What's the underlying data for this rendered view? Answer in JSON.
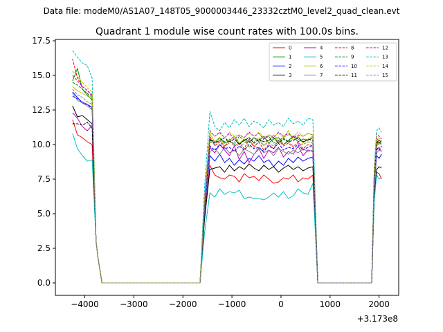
{
  "header": {
    "suptitle": "Data file: modeM0/AS1A07_148T05_9000003446_23332cztM0_level2_quad_clean.evt"
  },
  "chart_data": {
    "type": "line",
    "title": "Quadrant 1 module wise count rates with 100.0s bins.",
    "xlabel": "",
    "ylabel": "",
    "x_offset_label": "+3.173e8",
    "xlim": [
      -4600,
      2400
    ],
    "ylim": [
      -0.9,
      17.6
    ],
    "x_ticks": [
      -4000,
      -3000,
      -2000,
      -1000,
      0,
      1000,
      2000
    ],
    "x_tick_labels": [
      "−4000",
      "−3000",
      "−2000",
      "−1000",
      "0",
      "1000",
      "2000"
    ],
    "y_ticks": [
      0.0,
      2.5,
      5.0,
      7.5,
      10.0,
      12.5,
      15.0,
      17.5
    ],
    "y_tick_labels": [
      "0.0",
      "2.5",
      "5.0",
      "7.5",
      "10.0",
      "12.5",
      "15.0",
      "17.5"
    ],
    "legend": {
      "location": "top-right",
      "columns": 4
    },
    "segments": [
      {
        "x_start": -4250,
        "x_end": -3650,
        "pattern": "start"
      },
      {
        "x_start": -1650,
        "x_end": 750,
        "pattern": "middle"
      },
      {
        "x_start": 1850,
        "x_end": 2050,
        "pattern": "end"
      }
    ],
    "series": [
      {
        "name": "0",
        "color": "#ff0000",
        "style": "solid",
        "seg1": [
          11.8,
          10.7,
          10.5,
          10.2,
          10.0
        ],
        "mid": [
          8.5,
          7.8,
          7.6,
          7.5,
          7.8,
          7.7,
          7.3,
          7.9,
          7.6,
          7.7,
          7.4,
          7.8,
          7.5,
          7.2,
          7.3,
          7.6,
          7.5,
          7.8,
          7.3,
          7.6,
          7.5,
          7.8
        ],
        "seg3": [
          8.0,
          7.9,
          7.5
        ]
      },
      {
        "name": "1",
        "color": "#008000",
        "style": "solid",
        "seg1": [
          14.6,
          15.5,
          14.0,
          13.6,
          13.2
        ],
        "mid": [
          10.4,
          10.2,
          10.5,
          10.1,
          10.3,
          10.6,
          10.0,
          10.4,
          10.2,
          10.5,
          10.3,
          10.6,
          10.1,
          10.4,
          10.5,
          10.0,
          10.3,
          10.6,
          10.2,
          10.4,
          10.3,
          10.5
        ],
        "seg3": [
          10.0,
          10.2,
          10.1
        ]
      },
      {
        "name": "2",
        "color": "#0000ff",
        "style": "solid",
        "seg1": [
          13.8,
          13.4,
          13.0,
          12.9,
          12.7
        ],
        "mid": [
          9.2,
          8.8,
          9.3,
          8.7,
          9.0,
          8.5,
          8.9,
          8.6,
          9.0,
          8.8,
          9.2,
          8.7,
          8.9,
          8.4,
          8.8,
          8.5,
          9.0,
          8.7,
          9.1,
          8.8,
          9.0,
          9.1
        ],
        "seg3": [
          9.2,
          9.0,
          9.3
        ]
      },
      {
        "name": "3",
        "color": "#000000",
        "style": "solid",
        "seg1": [
          12.8,
          12.0,
          12.1,
          11.8,
          11.5
        ],
        "mid": [
          8.2,
          8.3,
          8.4,
          8.0,
          8.5,
          8.1,
          8.4,
          8.2,
          8.6,
          8.3,
          8.1,
          8.5,
          8.2,
          8.4,
          8.0,
          8.3,
          8.5,
          8.2,
          8.4,
          8.1,
          8.3,
          8.4
        ],
        "seg3": [
          8.2,
          8.4,
          8.3
        ]
      },
      {
        "name": "4",
        "color": "#bf00bf",
        "style": "solid",
        "seg1": [
          12.3,
          11.9,
          11.3,
          11.0,
          11.4
        ],
        "mid": [
          9.8,
          9.4,
          10.0,
          9.6,
          9.2,
          9.9,
          8.9,
          9.5,
          8.7,
          9.3,
          9.7,
          9.0,
          9.6,
          9.4,
          9.8,
          9.1,
          9.5,
          9.3,
          9.9,
          9.2,
          9.6,
          9.5
        ],
        "seg3": [
          9.6,
          9.8,
          9.5
        ]
      },
      {
        "name": "5",
        "color": "#00bfbf",
        "style": "solid",
        "seg1": [
          10.8,
          9.7,
          9.2,
          8.8,
          8.9
        ],
        "mid": [
          6.5,
          6.2,
          6.8,
          6.4,
          6.6,
          6.5,
          6.7,
          6.1,
          6.2,
          6.1,
          6.1,
          6.0,
          6.2,
          6.5,
          6.2,
          6.6,
          6.1,
          6.3,
          6.8,
          6.5,
          6.4,
          7.2
        ],
        "seg3": [
          7.8,
          7.5,
          7.6
        ]
      },
      {
        "name": "6",
        "color": "#bfbf00",
        "style": "solid",
        "seg1": [
          14.2,
          13.9,
          13.7,
          13.5,
          13.3
        ],
        "mid": [
          10.8,
          10.2,
          10.5,
          9.9,
          10.3,
          10.6,
          10.1,
          10.4,
          9.8,
          10.2,
          10.5,
          9.9,
          10.3,
          10.7,
          10.2,
          10.5,
          11.0,
          10.3,
          10.6,
          10.1,
          10.4,
          10.6
        ],
        "seg3": [
          10.2,
          10.0,
          10.3
        ]
      },
      {
        "name": "7",
        "color": "#808080",
        "style": "solid",
        "seg1": [
          13.7,
          13.2,
          13.0,
          12.8,
          12.5
        ],
        "mid": [
          9.5,
          9.7,
          9.3,
          9.8,
          9.4,
          9.6,
          9.2,
          9.7,
          9.5,
          9.3,
          9.8,
          9.4,
          9.6,
          9.2,
          9.7,
          9.5,
          9.3,
          9.6,
          9.4,
          9.7,
          9.5,
          9.6
        ],
        "seg3": [
          9.4,
          9.6,
          9.5
        ]
      },
      {
        "name": "8",
        "color": "#ff0000",
        "style": "dashed",
        "seg1": [
          16.2,
          14.8,
          14.2,
          13.9,
          13.6
        ],
        "mid": [
          10.6,
          9.9,
          10.2,
          9.8,
          10.3,
          9.9,
          10.1,
          9.7,
          10.4,
          9.8,
          10.2,
          9.6,
          10.0,
          9.7,
          10.3,
          9.9,
          10.1,
          9.8,
          10.2,
          9.7,
          10.0,
          9.9
        ],
        "seg3": [
          10.5,
          10.2,
          10.0
        ]
      },
      {
        "name": "9",
        "color": "#008000",
        "style": "dashed",
        "seg1": [
          14.5,
          14.3,
          14.0,
          13.7,
          13.4
        ],
        "mid": [
          10.3,
          10.1,
          10.5,
          10.2,
          10.4,
          10.0,
          10.6,
          10.3,
          10.1,
          10.5,
          10.2,
          10.4,
          10.6,
          10.1,
          10.3,
          10.5,
          10.2,
          10.6,
          10.4,
          10.2,
          10.3,
          10.5
        ],
        "seg3": [
          10.3,
          10.1,
          10.2
        ]
      },
      {
        "name": "10",
        "color": "#0000ff",
        "style": "dashed",
        "seg1": [
          13.5,
          13.3,
          13.1,
          12.9,
          12.6
        ],
        "mid": [
          9.9,
          9.6,
          10.0,
          9.7,
          9.8,
          9.5,
          9.9,
          9.6,
          10.0,
          9.7,
          9.8,
          9.5,
          9.9,
          9.7,
          10.1,
          9.6,
          9.8,
          9.7,
          10.0,
          9.6,
          9.8,
          9.9
        ],
        "seg3": [
          9.8,
          9.6,
          9.9
        ]
      },
      {
        "name": "11",
        "color": "#000000",
        "style": "dashed",
        "seg1": [
          11.5,
          11.5,
          11.4,
          11.6,
          11.2
        ],
        "mid": [
          10.4,
          10.1,
          10.3,
          10.5,
          10.2,
          10.4,
          10.0,
          10.3,
          10.5,
          10.1,
          10.4,
          10.2,
          10.3,
          10.5,
          10.1,
          10.4,
          10.2,
          10.3,
          10.5,
          10.2,
          10.4,
          10.3
        ],
        "seg3": [
          10.1,
          10.3,
          10.2
        ]
      },
      {
        "name": "12",
        "color": "#bf00bf",
        "style": "dashed",
        "seg1": [
          15.0,
          14.6,
          14.2,
          13.9,
          13.5
        ],
        "mid": [
          11.0,
          10.6,
          10.9,
          10.5,
          10.8,
          10.4,
          10.7,
          10.5,
          10.9,
          10.6,
          10.8,
          10.4,
          10.7,
          10.5,
          10.9,
          10.6,
          10.8,
          10.5,
          10.7,
          10.6,
          10.8,
          10.7
        ],
        "seg3": [
          10.8,
          10.6,
          10.4
        ]
      },
      {
        "name": "13",
        "color": "#00bfbf",
        "style": "dashed",
        "seg1": [
          16.8,
          16.3,
          15.9,
          15.7,
          14.8
        ],
        "mid": [
          12.4,
          11.3,
          11.0,
          11.6,
          11.2,
          11.8,
          11.4,
          11.9,
          11.3,
          11.7,
          11.5,
          11.2,
          11.8,
          11.4,
          11.6,
          11.3,
          11.9,
          11.5,
          11.7,
          11.4,
          11.9,
          11.8
        ],
        "seg3": [
          11.0,
          11.2,
          10.9
        ]
      },
      {
        "name": "14",
        "color": "#bfbf00",
        "style": "dashed",
        "seg1": [
          15.3,
          14.9,
          14.5,
          14.1,
          13.8
        ],
        "mid": [
          10.9,
          10.6,
          10.8,
          10.5,
          10.9,
          10.6,
          10.7,
          10.5,
          10.8,
          10.6,
          10.9,
          10.5,
          10.7,
          10.6,
          10.8,
          10.5,
          10.7,
          10.6,
          10.9,
          10.6,
          10.8,
          10.7
        ],
        "seg3": [
          10.6,
          10.4,
          10.5
        ]
      },
      {
        "name": "15",
        "color": "#808080",
        "style": "dashed",
        "seg1": [
          14.0,
          13.6,
          13.4,
          13.1,
          12.9
        ],
        "mid": [
          10.2,
          10.0,
          10.3,
          9.9,
          10.1,
          10.2,
          9.8,
          10.1,
          10.3,
          9.9,
          10.2,
          10.0,
          10.1,
          9.9,
          10.3,
          10.0,
          10.2,
          9.9,
          10.1,
          10.0,
          10.2,
          10.1
        ],
        "seg3": [
          9.9,
          10.1,
          10.0
        ]
      }
    ]
  }
}
